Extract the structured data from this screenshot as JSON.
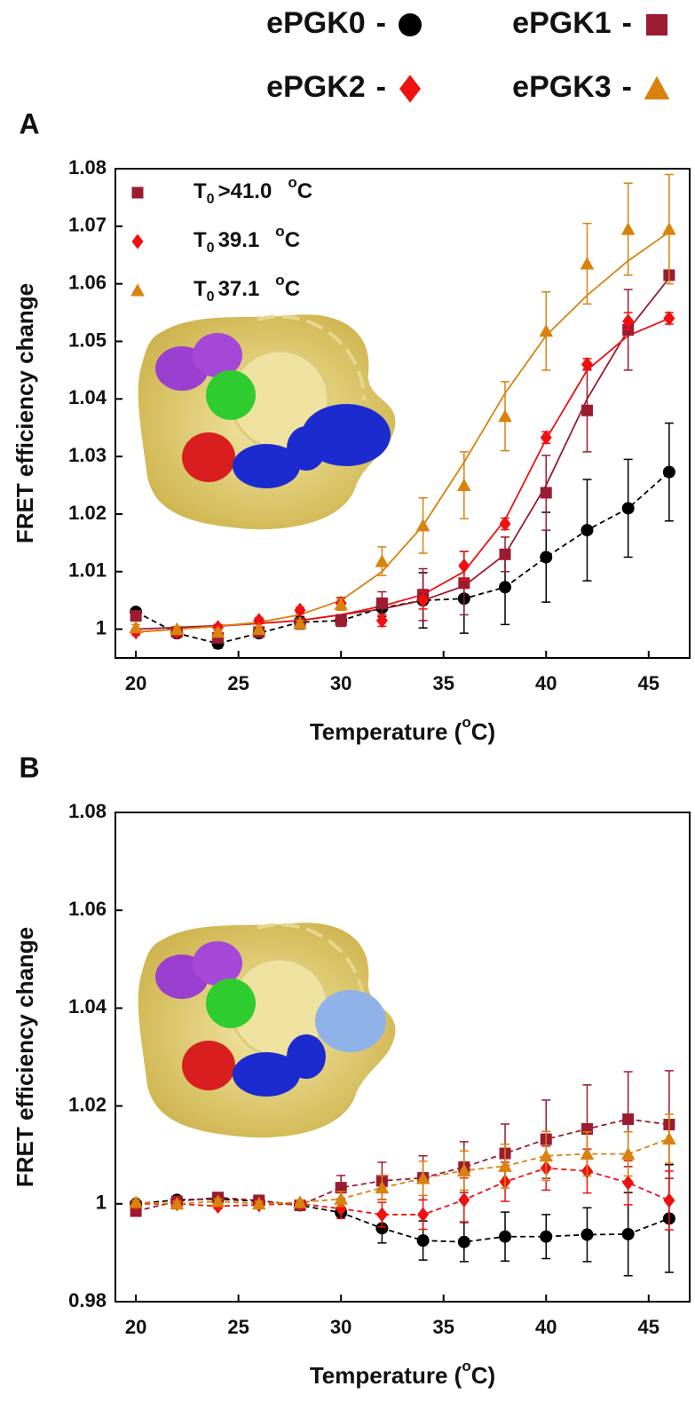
{
  "chart_data": [
    {
      "type": "scatter",
      "panel_label": "A",
      "legend_separator": "-",
      "x": [
        20,
        22,
        24,
        26,
        28,
        30,
        32,
        34,
        36,
        38,
        40,
        42,
        44,
        46
      ],
      "xlim": [
        19,
        47
      ],
      "xticks": [
        20,
        25,
        30,
        35,
        40,
        45
      ],
      "ylim": [
        0.995,
        1.08
      ],
      "yticks": [
        1,
        1.01,
        1.02,
        1.03,
        1.04,
        1.05,
        1.06,
        1.07,
        1.08
      ],
      "ylabel": "FRET efficiency change",
      "xlabel": {
        "text": "Temperature (",
        "sup": "o",
        "tail": "C)"
      },
      "series": [
        {
          "name": "ePGK0",
          "color": "#000000",
          "marker": "circle",
          "linestyle": "dashed",
          "values": [
            1.003,
            0.9993,
            0.9975,
            0.9993,
            1.0012,
            1.0015,
            1.0037,
            1.005,
            1.0053,
            1.0073,
            1.0125,
            1.0172,
            1.021,
            1.0273
          ],
          "errors": [
            0.0005,
            0.0005,
            0.0008,
            0.0005,
            0.001,
            0.001,
            0.0015,
            0.0048,
            0.006,
            0.0065,
            0.0078,
            0.0088,
            0.0085,
            0.0085
          ]
        },
        {
          "name": "ePGK1",
          "color": "#9b1b30",
          "marker": "square",
          "linestyle": "solid",
          "values": [
            1.0023,
            0.9995,
            0.9985,
            0.9995,
            1.001,
            1.0015,
            1.0045,
            1.006,
            1.008,
            1.013,
            1.0237,
            1.038,
            1.052,
            1.0615
          ],
          "errors": [
            0.0005,
            0.0005,
            0.0005,
            0.0005,
            0.001,
            0.001,
            0.002,
            0.0045,
            0.0055,
            0.003,
            0.0065,
            0.0072,
            0.007,
            0.0005
          ],
          "fit": [
            1.0,
            1.0003,
            1.0006,
            1.001,
            1.0015,
            1.0025,
            1.0035,
            1.005,
            1.0075,
            1.013,
            1.025,
            1.04,
            1.052,
            1.061
          ]
        },
        {
          "name": "ePGK2",
          "color": "#f01010",
          "marker": "diamond",
          "linestyle": "solid",
          "values": [
            0.9995,
            0.9995,
            1.0003,
            1.0015,
            1.0033,
            1.0045,
            1.0015,
            1.005,
            1.011,
            1.0183,
            1.0333,
            1.046,
            1.0535,
            1.054
          ],
          "errors": [
            0.0005,
            0.0005,
            0.0005,
            0.0005,
            0.0005,
            0.001,
            0.001,
            0.0015,
            0.0025,
            0.001,
            0.001,
            0.001,
            0.0015,
            0.001
          ],
          "fit": [
            0.9995,
            1.0,
            1.0005,
            1.001,
            1.0015,
            1.0025,
            1.004,
            1.006,
            1.01,
            1.019,
            1.033,
            1.045,
            1.051,
            1.054
          ]
        },
        {
          "name": "ePGK3",
          "color": "#d9820f",
          "marker": "triangle",
          "linestyle": "solid",
          "values": [
            1.0003,
            1.0,
            0.9995,
            1.0,
            1.001,
            1.0043,
            1.0118,
            1.018,
            1.025,
            1.037,
            1.0518,
            1.0635,
            1.0695,
            1.0695
          ],
          "errors": [
            0.0005,
            0.0005,
            0.0005,
            0.0005,
            0.0005,
            0.001,
            0.0025,
            0.0048,
            0.0058,
            0.006,
            0.0068,
            0.007,
            0.008,
            0.0095
          ],
          "fit": [
            0.9995,
            1.0,
            1.0005,
            1.0012,
            1.0025,
            1.005,
            1.01,
            1.018,
            1.029,
            1.041,
            1.051,
            1.058,
            1.064,
            1.069
          ]
        }
      ],
      "annotations": [
        {
          "marker": "square",
          "marker_color": "#9b1b30",
          "symbol": "T",
          "subscript": "0",
          "value": ">41.0",
          "unit_sup": "o",
          "unit": "C"
        },
        {
          "marker": "diamond",
          "marker_color": "#f01010",
          "symbol": "T",
          "subscript": "0",
          "value": 39.1,
          "unit_sup": "o",
          "unit": "C"
        },
        {
          "marker": "triangle",
          "marker_color": "#d9820f",
          "symbol": "T",
          "subscript": "0",
          "value": 37.1,
          "unit_sup": "o",
          "unit": "C"
        }
      ]
    },
    {
      "type": "scatter",
      "panel_label": "B",
      "x": [
        20,
        22,
        24,
        26,
        28,
        30,
        32,
        34,
        36,
        38,
        40,
        42,
        44,
        46
      ],
      "xlim": [
        19,
        47
      ],
      "xticks": [
        20,
        25,
        30,
        35,
        40,
        45
      ],
      "ylim": [
        0.98,
        1.08
      ],
      "yticks": [
        0.98,
        1,
        1.02,
        1.04,
        1.06,
        1.08
      ],
      "ylabel": "FRET efficiency change",
      "xlabel": {
        "text": "Temperature (",
        "sup": "o",
        "tail": "C)"
      },
      "series": [
        {
          "color": "#000000",
          "marker": "circle",
          "linestyle": "dashed",
          "values": [
            1.0,
            1.0008,
            1.001,
            1.0005,
            0.9997,
            0.9982,
            0.995,
            0.9925,
            0.9922,
            0.9933,
            0.9933,
            0.9937,
            0.9938,
            0.997
          ],
          "errors": [
            0.0005,
            0.0005,
            0.0005,
            0.0005,
            0.0005,
            0.0008,
            0.003,
            0.004,
            0.004,
            0.005,
            0.0045,
            0.0055,
            0.0085,
            0.011
          ]
        },
        {
          "color": "#9b1b30",
          "marker": "square",
          "linestyle": "dashed",
          "values": [
            0.9985,
            1.0005,
            1.0013,
            1.0007,
            0.9997,
            1.0033,
            1.0047,
            1.0053,
            1.0075,
            1.0103,
            1.0132,
            1.0153,
            1.0173,
            1.0162
          ],
          "errors": [
            0.0005,
            0.0005,
            0.0005,
            0.0005,
            0.0005,
            0.0025,
            0.0038,
            0.0045,
            0.0052,
            0.006,
            0.008,
            0.009,
            0.0097,
            0.011
          ]
        },
        {
          "color": "#f01010",
          "marker": "diamond",
          "linestyle": "dashed",
          "values": [
            1.0,
            1.0,
            0.9995,
            0.9998,
            1.0,
            0.999,
            0.9978,
            0.9978,
            1.0008,
            1.0045,
            1.0073,
            1.0067,
            1.0043,
            1.0007
          ],
          "errors": [
            0.0005,
            0.0005,
            0.0005,
            0.0005,
            0.0005,
            0.002,
            0.0025,
            0.003,
            0.0045,
            0.004,
            0.0045,
            0.0045,
            0.0045,
            0.006
          ]
        },
        {
          "color": "#d9820f",
          "marker": "triangle",
          "linestyle": "dashed",
          "values": [
            1.0003,
            1.0,
            1.0005,
            1.0,
            1.0003,
            1.001,
            1.0033,
            1.0052,
            1.0068,
            1.0077,
            1.0098,
            1.0102,
            1.0102,
            1.0133
          ],
          "errors": [
            0.0005,
            0.0005,
            0.0005,
            0.0005,
            0.0005,
            0.0015,
            0.0025,
            0.0035,
            0.004,
            0.0045,
            0.005,
            0.0045,
            0.0045,
            0.005
          ]
        }
      ]
    }
  ]
}
